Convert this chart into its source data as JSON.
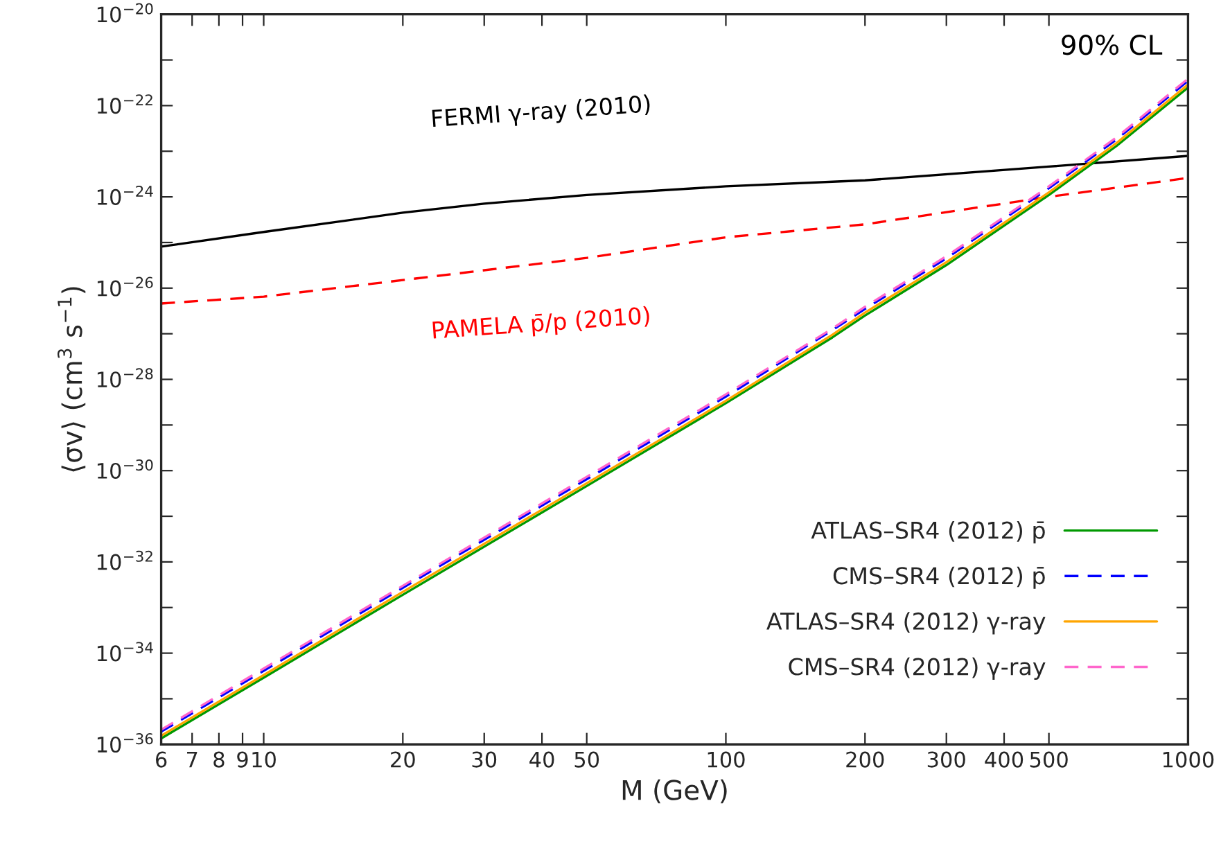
{
  "chart_data": {
    "type": "line",
    "xlabel": "M (GeV)",
    "ylabel": "⟨σv⟩ (cm$^{3}$ s$^{−1}$)",
    "log": "xy",
    "grid": false,
    "legend": "bottom right",
    "xlim": [
      6,
      1000
    ],
    "ylim": [
      1e-36,
      1e-20
    ],
    "xticks": [
      6,
      7,
      8,
      9,
      10,
      20,
      30,
      40,
      50,
      100,
      200,
      300,
      400,
      500,
      1000
    ],
    "yticks": [
      {
        "value": 1e-36,
        "label": "10$^{−36}$"
      },
      {
        "value": 1e-35,
        "label": null
      },
      {
        "value": 1e-34,
        "label": "10$^{−34}$"
      },
      {
        "value": 1e-33,
        "label": null
      },
      {
        "value": 1e-32,
        "label": "10$^{−32}$"
      },
      {
        "value": 1e-31,
        "label": null
      },
      {
        "value": 1e-30,
        "label": "10$^{−30}$"
      },
      {
        "value": 1e-29,
        "label": null
      },
      {
        "value": 1e-28,
        "label": "10$^{−28}$"
      },
      {
        "value": 1e-27,
        "label": null
      },
      {
        "value": 1e-26,
        "label": "10$^{−26}$"
      },
      {
        "value": 1e-25,
        "label": null
      },
      {
        "value": 1e-24,
        "label": "10$^{−24}$"
      },
      {
        "value": 1e-23,
        "label": null
      },
      {
        "value": 1e-22,
        "label": "10$^{−22}$"
      },
      {
        "value": 1e-21,
        "label": null
      },
      {
        "value": 1e-20,
        "label": "10$^{−20}$"
      }
    ],
    "annotations": [
      "90% CL",
      "FERMI γ-ray (2010)",
      "PAMELA p̄/p (2010)"
    ],
    "series": [
      {
        "color": "#000000",
        "line_style": "solid",
        "x": [
          6,
          10,
          20,
          30,
          50,
          100,
          200,
          500,
          1000
        ],
        "values": [
          8.1e-26,
          1.7e-25,
          4.5e-25,
          7.1e-25,
          1.1e-24,
          1.7e-24,
          2.3e-24,
          4.6e-24,
          7.9e-24
        ]
      },
      {
        "color": "#ff0000",
        "line_style": "dashed",
        "x": [
          6,
          10,
          20,
          50,
          100,
          200,
          500,
          1000
        ],
        "values": [
          4.6e-27,
          6.5e-27,
          1.5e-26,
          4.6e-26,
          1.3e-25,
          2.5e-25,
          1e-24,
          2.6e-24
        ]
      },
      {
        "name": "ATLAS–SR4 (2012) p̄",
        "color": "#009900",
        "line_style": "solid",
        "x": [
          6,
          10,
          20,
          50,
          100,
          170,
          200,
          300,
          500,
          700,
          1000
        ],
        "values": [
          1.35e-36,
          2.9e-35,
          1.9e-33,
          4.6e-31,
          3e-29,
          8.3e-28,
          2.5e-27,
          3.2e-26,
          1.1e-24,
          1.3e-23,
          2.5e-22
        ]
      },
      {
        "name": "CMS–SR4 (2012) p̄",
        "color": "#0000ff",
        "line_style": "dashed",
        "x": [
          6,
          10,
          20,
          50,
          100,
          170,
          200,
          300,
          500,
          700,
          1000
        ],
        "values": [
          1.9e-36,
          4.1e-35,
          2.7e-33,
          6.5e-31,
          4.2e-29,
          1.2e-27,
          3.5e-27,
          4.5e-26,
          1.55e-24,
          1.8e-23,
          3.5e-22
        ]
      },
      {
        "name": "ATLAS–SR4 (2012) γ-ray",
        "color": "#ffa500",
        "line_style": "solid",
        "x": [
          6,
          10,
          20,
          50,
          100,
          170,
          200,
          300,
          500,
          700,
          1000
        ],
        "values": [
          1.55e-36,
          3.3e-35,
          2.2e-33,
          5.3e-31,
          3.4e-29,
          9.5e-28,
          2.9e-27,
          3.7e-26,
          1.25e-24,
          1.5e-23,
          2.9e-22
        ]
      },
      {
        "name": "CMS–SR4 (2012) γ-ray",
        "color": "#ff66cc",
        "line_style": "dashed",
        "x": [
          6,
          10,
          20,
          50,
          100,
          170,
          200,
          300,
          500,
          700,
          1000
        ],
        "values": [
          2.1e-36,
          4.6e-35,
          3e-33,
          7.3e-31,
          4.7e-29,
          1.3e-27,
          3.9e-27,
          5e-26,
          1.7e-24,
          2e-23,
          3.9e-22
        ]
      }
    ]
  }
}
